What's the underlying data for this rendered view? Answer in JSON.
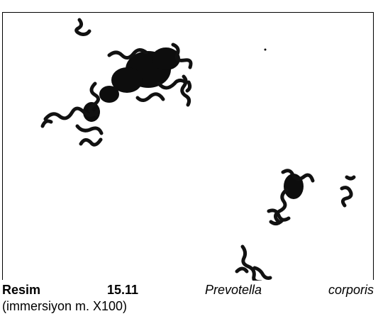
{
  "figure": {
    "label": "Resim 15.11",
    "species": "Prevotella corporis",
    "note": "(immersiyon m. X100)"
  }
}
